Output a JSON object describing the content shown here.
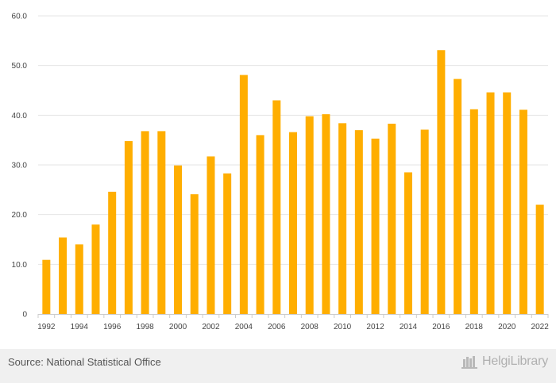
{
  "chart_data": {
    "type": "bar",
    "categories": [
      "1992",
      "1993",
      "1994",
      "1995",
      "1996",
      "1997",
      "1998",
      "1999",
      "2000",
      "2001",
      "2002",
      "2003",
      "2004",
      "2005",
      "2006",
      "2007",
      "2008",
      "2009",
      "2010",
      "2011",
      "2012",
      "2013",
      "2014",
      "2015",
      "2016",
      "2017",
      "2018",
      "2019",
      "2020",
      "2021",
      "2022"
    ],
    "values": [
      10.9,
      15.4,
      14.0,
      18.0,
      24.6,
      34.8,
      36.8,
      36.8,
      29.9,
      24.1,
      31.7,
      28.3,
      48.1,
      36.0,
      43.0,
      36.6,
      39.8,
      40.2,
      38.4,
      37.0,
      35.3,
      38.3,
      28.5,
      37.1,
      53.1,
      47.3,
      41.2,
      44.6,
      44.6,
      41.1,
      22.0
    ],
    "x_tick_labels": [
      "1992",
      "1994",
      "1996",
      "1998",
      "2000",
      "2002",
      "2004",
      "2006",
      "2008",
      "2010",
      "2012",
      "2014",
      "2016",
      "2018",
      "2020",
      "2022"
    ],
    "y_tick_labels": [
      "0",
      "10.0",
      "20.0",
      "30.0",
      "40.0",
      "50.0",
      "60.0"
    ],
    "ylim": [
      0,
      60
    ],
    "title": "",
    "xlabel": "",
    "ylabel": "",
    "grid": true,
    "bar_color": "#ffae00",
    "grid_color": "#e6e6e6"
  },
  "footer": {
    "source": "Source: National Statistical Office",
    "brand": "HelgiLibrary",
    "logo_icon": "helgi-library-logo-icon"
  }
}
